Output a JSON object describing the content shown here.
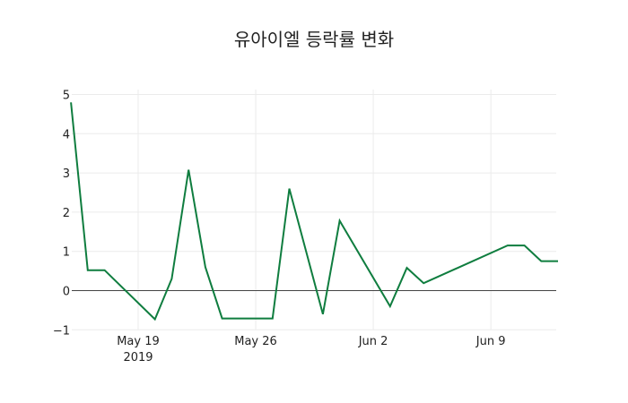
{
  "chart_data": {
    "type": "line",
    "title": "유아이엘 등락률 변화",
    "xlabel": "",
    "ylabel": "",
    "ylim": [
      -1,
      5.2
    ],
    "yticks": [
      -1,
      0,
      1,
      2,
      3,
      4,
      5
    ],
    "ytick_labels": [
      "−1",
      "0",
      "1",
      "2",
      "3",
      "4",
      "5"
    ],
    "xticks": [
      "2019-05-19",
      "2019-05-26",
      "2019-06-02",
      "2019-06-09"
    ],
    "xtick_labels": [
      {
        "line1": "May 19",
        "line2": "2019"
      },
      {
        "line1": "May 26",
        "line2": ""
      },
      {
        "line1": "Jun 2",
        "line2": ""
      },
      {
        "line1": "Jun 9",
        "line2": ""
      }
    ],
    "grid": true,
    "legend": false,
    "series": [
      {
        "name": "등락률",
        "color": "#0f7d3f",
        "x": [
          "2019-05-15",
          "2019-05-16",
          "2019-05-17",
          "2019-05-20",
          "2019-05-21",
          "2019-05-22",
          "2019-05-23",
          "2019-05-24",
          "2019-05-27",
          "2019-05-28",
          "2019-05-30",
          "2019-05-31",
          "2019-06-03",
          "2019-06-04",
          "2019-06-05",
          "2019-06-10",
          "2019-06-11",
          "2019-06-12",
          "2019-06-13"
        ],
        "values": [
          4.8,
          0.52,
          0.52,
          -0.73,
          0.3,
          3.08,
          0.6,
          -0.71,
          -0.71,
          2.6,
          -0.6,
          1.78,
          -0.4,
          0.58,
          0.19,
          1.15,
          1.15,
          0.75,
          0.75
        ]
      }
    ]
  }
}
